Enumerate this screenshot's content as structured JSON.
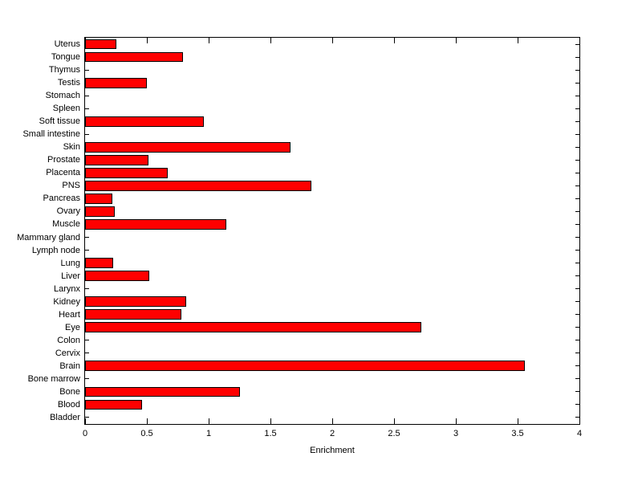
{
  "figure": {
    "background_color": "#ffffff",
    "axis_line_color": "#000000",
    "text_color": "#000000"
  },
  "chart_data": {
    "type": "bar",
    "orientation": "horizontal",
    "title": "",
    "xlabel": "Enrichment",
    "ylabel": "",
    "xlim": [
      0,
      4
    ],
    "xticks": [
      0,
      0.5,
      1,
      1.5,
      2,
      2.5,
      3,
      3.5,
      4
    ],
    "xtick_labels": [
      "0",
      "0.5",
      "1",
      "1.5",
      "2",
      "2.5",
      "3",
      "3.5",
      "4"
    ],
    "grid": false,
    "legend": null,
    "bar_color": "#ff0000",
    "bar_edge_color": "#000000",
    "categories_top_to_bottom": [
      "Uterus",
      "Tongue",
      "Thymus",
      "Testis",
      "Stomach",
      "Spleen",
      "Soft tissue",
      "Small intestine",
      "Skin",
      "Prostate",
      "Placenta",
      "PNS",
      "Pancreas",
      "Ovary",
      "Muscle",
      "Mammary gland",
      "Lymph node",
      "Lung",
      "Liver",
      "Larynx",
      "Kidney",
      "Heart",
      "Eye",
      "Colon",
      "Cervix",
      "Brain",
      "Bone marrow",
      "Bone",
      "Blood",
      "Bladder"
    ],
    "values": [
      0.25,
      0.79,
      0,
      0.5,
      0,
      0,
      0.96,
      0,
      1.66,
      0.51,
      0.67,
      1.83,
      0.22,
      0.24,
      1.14,
      0,
      0,
      0.23,
      0.52,
      0,
      0.82,
      0.78,
      2.72,
      0,
      0,
      3.56,
      0,
      1.25,
      0.46,
      0
    ]
  }
}
